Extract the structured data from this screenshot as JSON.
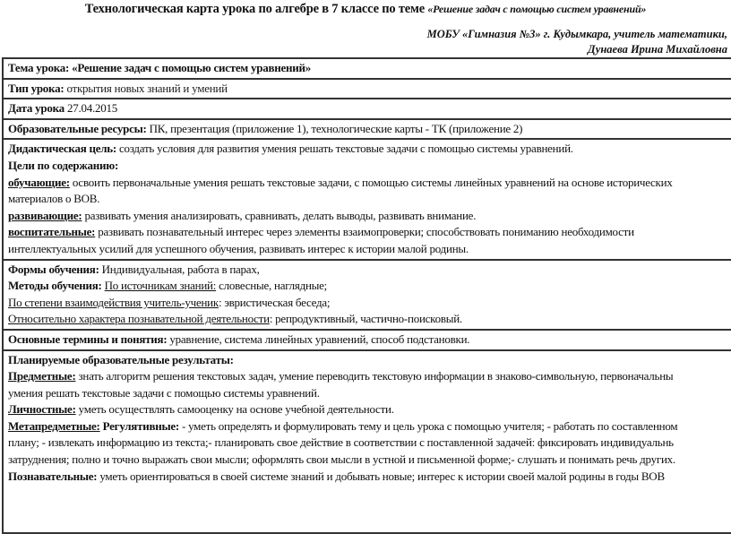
{
  "title": {
    "main": "Технологическая карта урока по алгебре в 7 классе по теме ",
    "topic": "«Решение задач с помощью систем уравнений»"
  },
  "author": {
    "line1": "МОБУ «Гимназия №3» г. Кудымкара,  учитель математики,",
    "line2": "Дунаева Ирина Михайловна"
  },
  "rows": {
    "theme": {
      "label": "Тема урока:",
      "value": " «Решение задач с помощью систем уравнений»"
    },
    "type": {
      "label": "Тип урока:",
      "value": " открытия новых знаний и умений"
    },
    "date": {
      "label": "Дата урока",
      "value": " 27.04.2015"
    },
    "resources": {
      "label": "Образовательные ресурсы:",
      "value": " ПК, презентация (приложение 1), технологические карты - ТК (приложение 2)"
    },
    "goals": {
      "didactic_label": "Дидактическая цель:",
      "didactic_value": " создать условия для развития  умения решать текстовые задачи с помощью системы уравнений.",
      "content_label": "Цели по содержанию:",
      "teaching_label": "обучающие:",
      "teaching_value1": " освоить первоначальные умения решать текстовые задачи, с помощью системы линейных уравнений на основе исторических",
      "teaching_value2": "материалов о ВОВ.",
      "developing_label": "развивающие:",
      "developing_value": " развивать умения анализировать, сравнивать, делать выводы, развивать внимание.",
      "educational_label": "воспитательные:",
      "educational_value1": " развивать познавательный интерес через элементы взаимопроверки; способствовать пониманию необходимости",
      "educational_value2": "интеллектуальных усилий для успешного обучения, развивать интерес к истории малой родины."
    },
    "methods": {
      "forms_label": "Формы обучения:",
      "forms_value": " Индивидуальная, работа в парах,",
      "methods_label": "Методы обучения:",
      "methods_sub": "По источникам знаний:",
      "methods_value": " словесные, наглядные;",
      "interaction_label": "По степени взаимодействия учитель-ученик",
      "interaction_value": ": эвристическая беседа;",
      "character_label": "Относительно характера познавательной деятельности",
      "character_value": ": репродуктивный, частично-поисковый."
    },
    "terms": {
      "label": "Основные термины и понятия:",
      "value": " уравнение, система линейных уравнений, способ подстановки."
    },
    "results": {
      "heading": "Планируемые образовательные результаты:",
      "subject_label": "Предметные:",
      "subject_value1": " знать алгоритм решения  текстовых задач, умение переводить текстовую информации в знаково-символьную, первоначальны",
      "subject_value2": "умения решать текстовые задачи с помощью системы уравнений.",
      "personal_label": "Личностные:",
      "personal_value": " уметь осуществлять самооценку на основе учебной деятельности.",
      "meta_label": "Метапредметные:",
      "regulative_label": " Регулятивные:",
      "meta_value1": " - уметь определять и формулировать тему и цель урока с помощью учителя; - работать по составленном",
      "meta_value2": "плану;  - извлекать информацию из текста;- планировать свое действие в соответствии с поставленной задачей: фиксировать индивидуальнь",
      "meta_value3": "затруднения; полно и точно выражать свои мысли; оформлять свои мысли в устной и письменной форме;- слушать и понимать речь других.",
      "cognitive_label": " Познавательные:",
      "cognitive_value": " уметь ориентироваться в своей системе знаний и добывать новые; интерес к истории своей малой родины  в годы ВОВ"
    }
  }
}
